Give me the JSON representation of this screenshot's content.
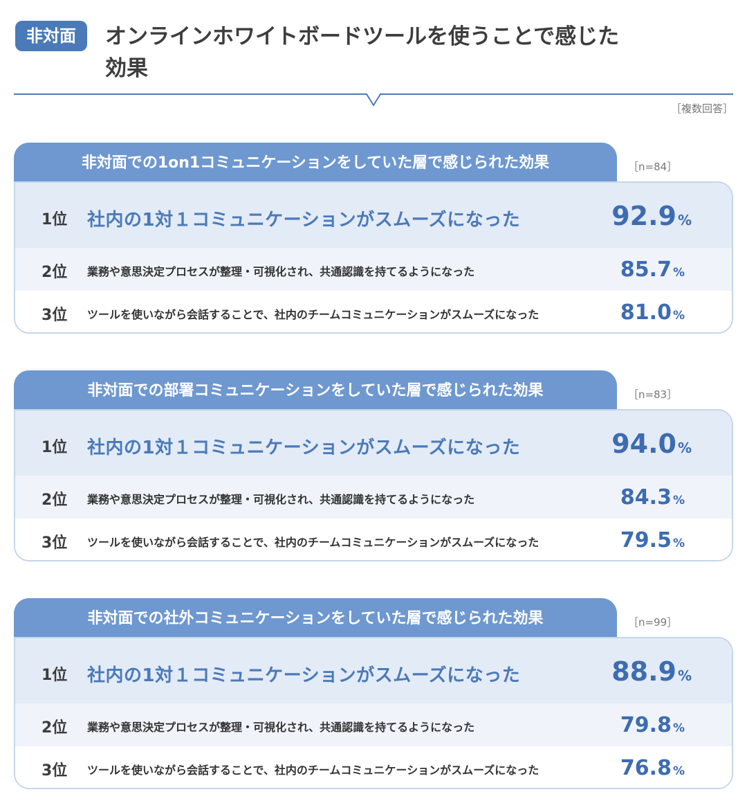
{
  "header": {
    "badge": "非対面",
    "title": "オンラインホワイトボードツールを使うことで感じた効果",
    "note": "［複数回答］"
  },
  "sections": [
    {
      "tab": "非対面での1on1コミュニケーションをしていた層で感じられた効果",
      "n": "［n=84］",
      "rows": [
        {
          "rank": "1位",
          "label": "社内の1対１コミュニケーションがスムーズになった",
          "value": "92.9",
          "unit": "%"
        },
        {
          "rank": "2位",
          "label": "業務や意思決定プロセスが整理・可視化され、共通認識を持てるようになった",
          "value": "85.7",
          "unit": "%"
        },
        {
          "rank": "3位",
          "label": "ツールを使いながら会話することで、社内のチームコミュニケーションがスムーズになった",
          "value": "81.0",
          "unit": "%"
        }
      ]
    },
    {
      "tab": "非対面での部署コミュニケーションをしていた層で感じられた効果",
      "n": "［n=83］",
      "rows": [
        {
          "rank": "1位",
          "label": "社内の1対１コミュニケーションがスムーズになった",
          "value": "94.0",
          "unit": "%"
        },
        {
          "rank": "2位",
          "label": "業務や意思決定プロセスが整理・可視化され、共通認識を持てるようになった",
          "value": "84.3",
          "unit": "%"
        },
        {
          "rank": "3位",
          "label": "ツールを使いながら会話することで、社内のチームコミュニケーションがスムーズになった",
          "value": "79.5",
          "unit": "%"
        }
      ]
    },
    {
      "tab": "非対面での社外コミュニケーションをしていた層で感じられた効果",
      "n": "［n=99］",
      "rows": [
        {
          "rank": "1位",
          "label": "社内の1対１コミュニケーションがスムーズになった",
          "value": "88.9",
          "unit": "%"
        },
        {
          "rank": "2位",
          "label": "業務や意思決定プロセスが整理・可視化され、共通認識を持てるようになった",
          "value": "79.8",
          "unit": "%"
        },
        {
          "rank": "3位",
          "label": "ツールを使いながら会話することで、社内のチームコミュニケーションがスムーズになった",
          "value": "76.8",
          "unit": "%"
        }
      ]
    }
  ]
}
